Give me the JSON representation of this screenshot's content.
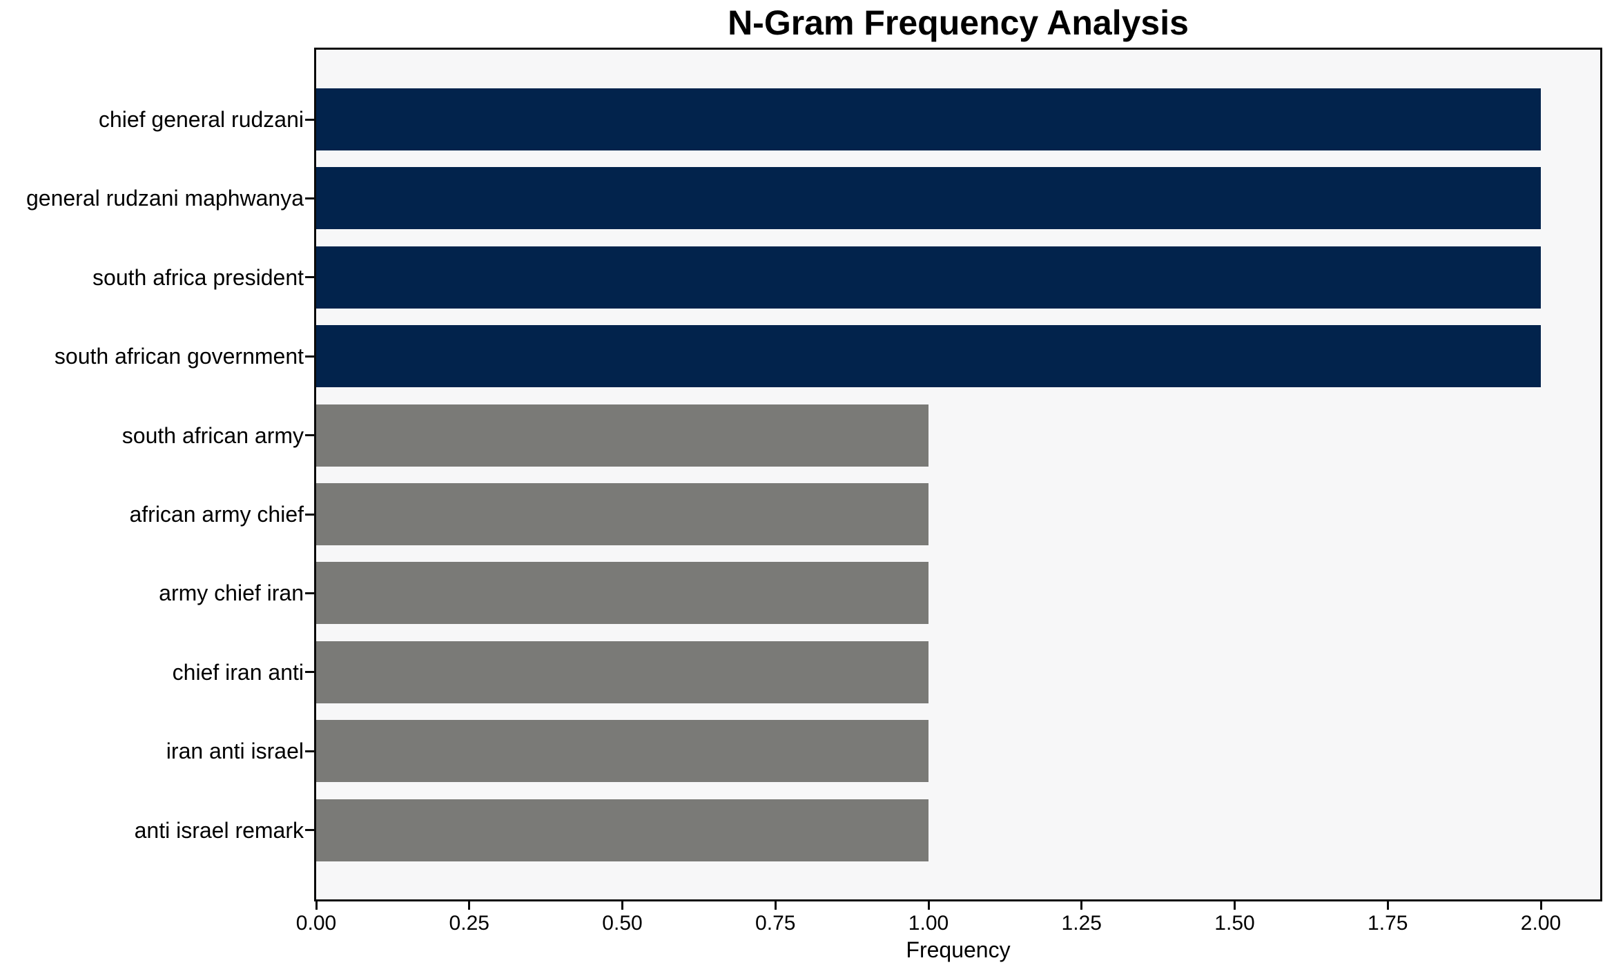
{
  "chart_data": {
    "type": "bar",
    "orientation": "horizontal",
    "title": "N-Gram Frequency Analysis",
    "xlabel": "Frequency",
    "ylabel": "",
    "categories": [
      "chief general rudzani",
      "general rudzani maphwanya",
      "south africa president",
      "south african government",
      "south african army",
      "african army chief",
      "army chief iran",
      "chief iran anti",
      "iran anti israel",
      "anti israel remark"
    ],
    "values": [
      2,
      2,
      2,
      2,
      1,
      1,
      1,
      1,
      1,
      1
    ],
    "bar_colors": [
      "#02234c",
      "#02234c",
      "#02234c",
      "#02234c",
      "#7a7a77",
      "#7a7a77",
      "#7a7a77",
      "#7a7a77",
      "#7a7a77",
      "#7a7a77"
    ],
    "xlim": [
      0,
      2.1
    ],
    "xticks": {
      "values": [
        0,
        0.25,
        0.5,
        0.75,
        1.0,
        1.25,
        1.5,
        1.75,
        2.0
      ],
      "labels": [
        "0.00",
        "0.25",
        "0.50",
        "0.75",
        "1.00",
        "1.25",
        "1.50",
        "1.75",
        "2.00"
      ]
    },
    "grid": false,
    "legend": null,
    "colors": {
      "bar_high_frequency": "#02234c",
      "bar_low_frequency": "#7a7a77",
      "plot_background": "#f7f7f8",
      "figure_background": "#ffffff",
      "axis_and_text": "#000000"
    }
  }
}
